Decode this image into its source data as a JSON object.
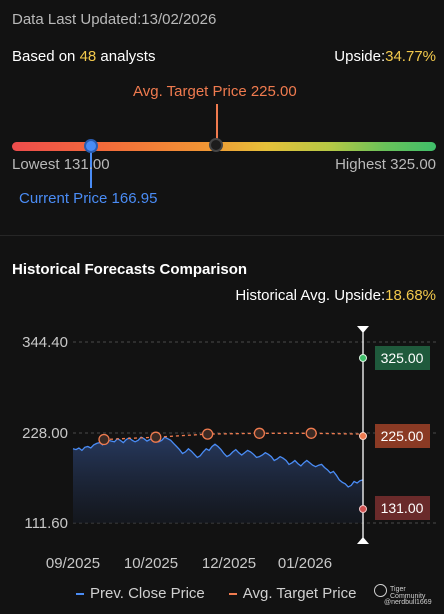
{
  "header": {
    "updated_label": "Data Last Updated:",
    "updated_date": "13/02/2026",
    "analysts_prefix": "Based on ",
    "analysts_count": "48",
    "analysts_suffix": " analysts",
    "upside_label": "Upside:",
    "upside_value": "34.77%"
  },
  "range": {
    "avg_target_label": "Avg. Target Price 225.00",
    "lowest_label": "Lowest 131.00",
    "highest_label": "Highest 325.00",
    "current_label": "Current Price 166.95",
    "lowest": 131.0,
    "highest": 325.0,
    "avg_target": 225.0,
    "current": 166.95
  },
  "historical": {
    "title": "Historical Forecasts Comparison",
    "avg_upside_label": "Historical Avg. Upside:",
    "avg_upside_value": "18.68%"
  },
  "legend": {
    "prev_close": "Prev. Close Price",
    "avg_target": "Avg. Target Price"
  },
  "watermark": {
    "title": "Tiger Community",
    "user": "@nerdbull1669"
  },
  "colors": {
    "price_line": "#4a8cf5",
    "target_line": "#f07b4f",
    "high_badge": "#1f5a3c",
    "avg_badge": "#8a3a24",
    "low_badge": "#6a2a2a"
  },
  "chart_data": {
    "type": "line",
    "y_ticks": [
      "344.40",
      "228.00",
      "111.60"
    ],
    "ylim": [
      111.6,
      344.4
    ],
    "x_ticks": [
      "09/2025",
      "10/2025",
      "12/2025",
      "01/2026"
    ],
    "series": [
      {
        "name": "Prev. Close Price",
        "values": [
          207,
          206,
          208,
          205,
          209,
          210,
          208,
          212,
          214,
          215,
          212,
          216,
          218,
          217,
          216,
          220,
          218,
          215,
          219,
          221,
          218,
          216,
          218,
          222,
          220,
          217,
          219,
          221,
          219,
          216,
          218,
          222,
          220,
          218,
          214,
          210,
          206,
          201,
          203,
          207,
          204,
          200,
          196,
          198,
          203,
          207,
          205,
          210,
          213,
          210,
          206,
          201,
          197,
          199,
          203,
          206,
          202,
          199,
          202,
          205,
          203,
          200,
          196,
          197,
          199,
          202,
          200,
          197,
          192,
          194,
          197,
          195,
          192,
          187,
          189,
          192,
          188,
          185,
          189,
          192,
          189,
          186,
          184,
          186,
          187,
          183,
          180,
          176,
          178,
          173,
          167,
          164,
          162,
          158,
          160,
          165,
          163,
          166,
          167
        ]
      },
      {
        "name": "Avg. Target Price",
        "values": [
          219,
          222,
          226,
          227,
          227,
          226
        ]
      }
    ],
    "callouts": {
      "high": "325.00",
      "avg": "225.00",
      "low": "131.00"
    }
  }
}
